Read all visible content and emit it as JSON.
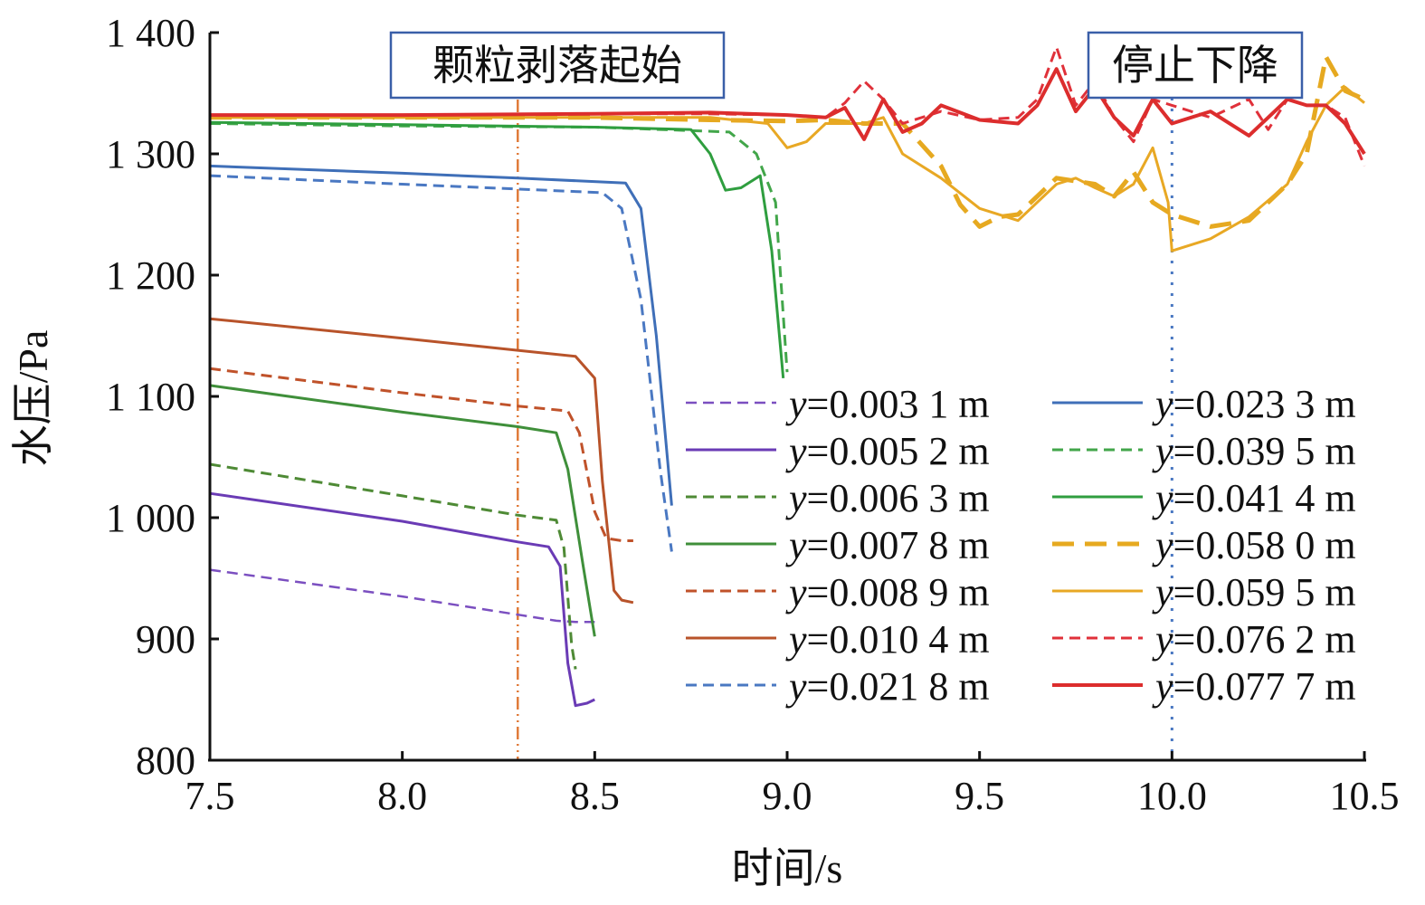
{
  "chart_data": {
    "type": "line",
    "xlabel": "时间/s",
    "ylabel": "水压/Pa",
    "xlim": [
      7.5,
      10.5
    ],
    "ylim": [
      800,
      1400
    ],
    "xticks": [
      7.5,
      8.0,
      8.5,
      9.0,
      9.5,
      10.0,
      10.5
    ],
    "xtick_labels": [
      "7.5",
      "8.0",
      "8.5",
      "9.0",
      "9.5",
      "10.0",
      "10.5"
    ],
    "yticks": [
      800,
      900,
      1000,
      1100,
      1200,
      1300,
      1400
    ],
    "ytick_labels": [
      "800",
      "900",
      "1 000",
      "1 100",
      "1 200",
      "1 300",
      "1 400"
    ],
    "grid": false,
    "legend_position": "right",
    "annotations": [
      {
        "text": "颗粒剥落起始",
        "x": 8.3,
        "color": "#e07b3a"
      },
      {
        "text": "停止下降",
        "x": 10.0,
        "color": "#4a78c2"
      }
    ],
    "series": [
      {
        "name": "y=0.003 1 m",
        "var": "y",
        "rest": "=0.003 1 m",
        "color": "#7b4fc0",
        "dash": "dash",
        "width": 2.5,
        "x": [
          7.5,
          8.0,
          8.3,
          8.4,
          8.45,
          8.5
        ],
        "y": [
          957,
          935,
          920,
          915,
          914,
          914
        ]
      },
      {
        "name": "y=0.005 2 m",
        "var": "y",
        "rest": "=0.005 2 m",
        "color": "#6a3bb5",
        "dash": "solid",
        "width": 3,
        "x": [
          7.5,
          8.0,
          8.3,
          8.38,
          8.41,
          8.43,
          8.45,
          8.48,
          8.5
        ],
        "y": [
          1020,
          997,
          980,
          976,
          960,
          880,
          845,
          847,
          850
        ]
      },
      {
        "name": "y=0.006 3 m",
        "var": "y",
        "rest": "=0.006 3 m",
        "color": "#4e8a35",
        "dash": "dash",
        "width": 3,
        "x": [
          7.5,
          8.0,
          8.3,
          8.4,
          8.42,
          8.44,
          8.45
        ],
        "y": [
          1044,
          1018,
          1002,
          998,
          975,
          895,
          875
        ]
      },
      {
        "name": "y=0.007 8 m",
        "var": "y",
        "rest": "=0.007 8 m",
        "color": "#3f8f3a",
        "dash": "solid",
        "width": 3,
        "x": [
          7.5,
          8.0,
          8.3,
          8.4,
          8.43,
          8.47,
          8.5
        ],
        "y": [
          1109,
          1087,
          1075,
          1070,
          1040,
          960,
          902
        ]
      },
      {
        "name": "y=0.008 9 m",
        "var": "y",
        "rest": "=0.008 9 m",
        "color": "#c0522a",
        "dash": "dash",
        "width": 3,
        "x": [
          7.5,
          8.0,
          8.3,
          8.43,
          8.46,
          8.5,
          8.53,
          8.57,
          8.6
        ],
        "y": [
          1123,
          1103,
          1092,
          1088,
          1070,
          1005,
          983,
          981,
          981
        ]
      },
      {
        "name": "y=0.010 4 m",
        "var": "y",
        "rest": "=0.010 4 m",
        "color": "#b8532a",
        "dash": "solid",
        "width": 3,
        "x": [
          7.5,
          8.0,
          8.3,
          8.45,
          8.5,
          8.52,
          8.55,
          8.57,
          8.6
        ],
        "y": [
          1164,
          1148,
          1138,
          1133,
          1115,
          1030,
          940,
          932,
          930
        ]
      },
      {
        "name": "y=0.021 8 m",
        "var": "y",
        "rest": "=0.021 8 m",
        "color": "#4a78c2",
        "dash": "dash",
        "width": 3,
        "x": [
          7.5,
          8.0,
          8.3,
          8.52,
          8.57,
          8.62,
          8.67,
          8.7
        ],
        "y": [
          1282,
          1275,
          1271,
          1268,
          1255,
          1180,
          1040,
          972
        ]
      },
      {
        "name": "y=0.023 3 m",
        "var": "y",
        "rest": "=0.023 3 m",
        "color": "#3f6fb8",
        "dash": "solid",
        "width": 3,
        "x": [
          7.5,
          8.0,
          8.3,
          8.58,
          8.62,
          8.66,
          8.7
        ],
        "y": [
          1290,
          1284,
          1280,
          1276,
          1255,
          1150,
          1010
        ]
      },
      {
        "name": "y=0.039 5 m",
        "var": "y",
        "rest": "=0.039 5 m",
        "color": "#42a64a",
        "dash": "dash",
        "width": 3,
        "x": [
          7.5,
          8.0,
          8.5,
          8.85,
          8.92,
          8.97,
          9.0
        ],
        "y": [
          1325,
          1323,
          1322,
          1318,
          1300,
          1260,
          1120
        ]
      },
      {
        "name": "y=0.041 4 m",
        "var": "y",
        "rest": "=0.041 4 m",
        "color": "#2f9e3f",
        "dash": "solid",
        "width": 3,
        "x": [
          7.5,
          8.0,
          8.5,
          8.75,
          8.8,
          8.84,
          8.88,
          8.93,
          8.96,
          8.99
        ],
        "y": [
          1326,
          1324,
          1322,
          1320,
          1300,
          1270,
          1272,
          1282,
          1220,
          1115
        ]
      },
      {
        "name": "y=0.058 0 m",
        "var": "y",
        "rest": "=0.058 0 m",
        "color": "#e6a920",
        "dash": "bigdash",
        "width": 5,
        "x": [
          7.5,
          8.0,
          8.5,
          8.8,
          9.0,
          9.1,
          9.2,
          9.3,
          9.4,
          9.45,
          9.5,
          9.55,
          9.6,
          9.7,
          9.8,
          9.85,
          9.9,
          9.95,
          10.0,
          10.1,
          10.2,
          10.25,
          10.3,
          10.35,
          10.4,
          10.45,
          10.5
        ],
        "y": [
          1330,
          1330,
          1330,
          1328,
          1327,
          1328,
          1325,
          1325,
          1290,
          1258,
          1240,
          1248,
          1250,
          1280,
          1275,
          1265,
          1285,
          1260,
          1250,
          1240,
          1245,
          1260,
          1275,
          1300,
          1380,
          1352,
          1345
        ]
      },
      {
        "name": "y=0.059 5 m",
        "var": "y",
        "rest": "=0.059 5 m",
        "color": "#e8a824",
        "dash": "solid",
        "width": 3,
        "x": [
          7.5,
          8.0,
          8.5,
          8.8,
          8.95,
          9.0,
          9.05,
          9.1,
          9.2,
          9.25,
          9.3,
          9.4,
          9.5,
          9.6,
          9.7,
          9.75,
          9.8,
          9.85,
          9.9,
          9.95,
          9.99,
          10.0,
          10.1,
          10.2,
          10.3,
          10.35,
          10.4,
          10.45,
          10.5
        ],
        "y": [
          1330,
          1330,
          1330,
          1330,
          1325,
          1305,
          1310,
          1325,
          1325,
          1330,
          1300,
          1280,
          1255,
          1245,
          1275,
          1280,
          1272,
          1265,
          1275,
          1305,
          1260,
          1220,
          1230,
          1248,
          1275,
          1310,
          1340,
          1355,
          1342
        ]
      },
      {
        "name": "y=0.076 2 m",
        "var": "y",
        "rest": "=0.076 2 m",
        "color": "#e0313a",
        "dash": "dash",
        "width": 3,
        "x": [
          7.5,
          8.0,
          8.5,
          8.8,
          9.0,
          9.1,
          9.15,
          9.2,
          9.25,
          9.3,
          9.4,
          9.5,
          9.6,
          9.65,
          9.7,
          9.75,
          9.8,
          9.85,
          9.9,
          9.95,
          10.0,
          10.1,
          10.2,
          10.25,
          10.3,
          10.35,
          10.4,
          10.45,
          10.5
        ],
        "y": [
          1332,
          1332,
          1333,
          1333,
          1332,
          1330,
          1342,
          1360,
          1345,
          1325,
          1335,
          1328,
          1330,
          1345,
          1388,
          1340,
          1360,
          1330,
          1310,
          1345,
          1340,
          1330,
          1345,
          1320,
          1345,
          1340,
          1340,
          1330,
          1290
        ]
      },
      {
        "name": "y=0.077 7 m",
        "var": "y",
        "rest": "=0.077 7 m",
        "color": "#dc2d2d",
        "dash": "solid",
        "width": 4,
        "x": [
          7.5,
          8.0,
          8.5,
          8.8,
          9.0,
          9.1,
          9.15,
          9.2,
          9.25,
          9.3,
          9.35,
          9.4,
          9.5,
          9.6,
          9.65,
          9.7,
          9.75,
          9.8,
          9.85,
          9.9,
          9.95,
          10.0,
          10.1,
          10.2,
          10.25,
          10.3,
          10.35,
          10.4,
          10.45,
          10.5
        ],
        "y": [
          1332,
          1332,
          1333,
          1334,
          1332,
          1330,
          1338,
          1312,
          1345,
          1318,
          1325,
          1340,
          1328,
          1325,
          1340,
          1370,
          1335,
          1355,
          1330,
          1315,
          1345,
          1325,
          1335,
          1315,
          1330,
          1345,
          1340,
          1340,
          1325,
          1300
        ]
      }
    ]
  }
}
